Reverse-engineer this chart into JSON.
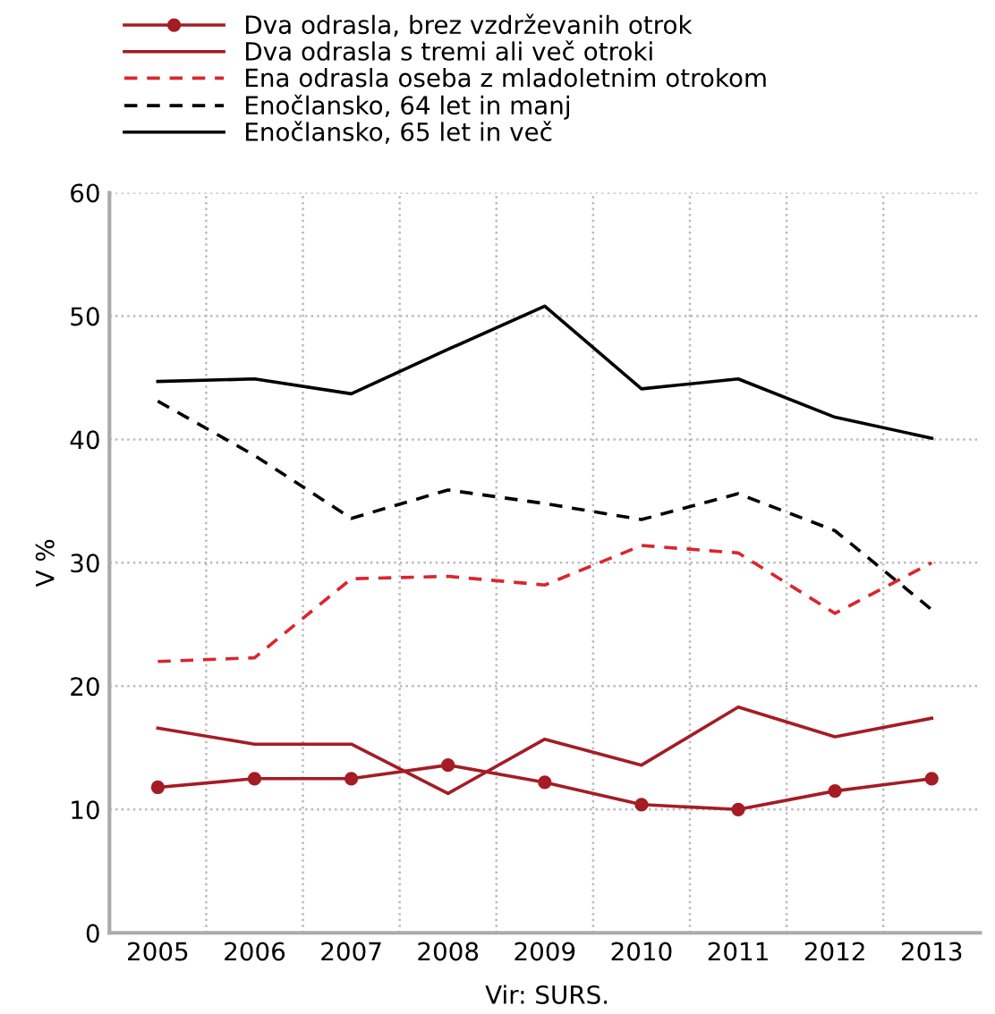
{
  "chart_data": {
    "type": "line",
    "ylabel": "V %",
    "annotations": [
      "Vir: SURS."
    ],
    "categories": [
      "2005",
      "2006",
      "2007",
      "2008",
      "2009",
      "2010",
      "2011",
      "2012",
      "2013"
    ],
    "series": [
      {
        "name": "Dva odrasla, brez vzdrževanih otrok",
        "color": "#a51c24",
        "marker": "circle",
        "line_style": "solid",
        "values": [
          11.8,
          12.5,
          12.5,
          13.6,
          12.2,
          10.4,
          10.0,
          11.5,
          12.5
        ]
      },
      {
        "name": "Dva odrasla s tremi ali več otroki",
        "color": "#a51c24",
        "marker": "none",
        "line_style": "solid",
        "values": [
          16.6,
          15.3,
          15.3,
          11.3,
          15.7,
          13.6,
          18.3,
          15.9,
          17.4
        ]
      },
      {
        "name": "Ena odrasla oseba z mladoletnim otrokom",
        "color": "#d9262e",
        "marker": "none",
        "line_style": "dashed",
        "values": [
          22.0,
          22.3,
          28.7,
          28.9,
          28.2,
          31.4,
          30.8,
          25.9,
          30.0
        ]
      },
      {
        "name": "Enočlansko, 64 let in manj",
        "color": "#000000",
        "marker": "none",
        "line_style": "dashed",
        "values": [
          43.1,
          38.7,
          33.6,
          35.9,
          34.8,
          33.5,
          35.6,
          32.6,
          26.2
        ]
      },
      {
        "name": "Enočlansko, 65 let in več",
        "color": "#000000",
        "marker": "none",
        "line_style": "solid",
        "values": [
          44.7,
          44.9,
          43.7,
          47.3,
          50.8,
          44.1,
          44.9,
          41.8,
          40.1
        ]
      }
    ],
    "ylim": [
      0,
      60
    ],
    "yticks": [
      0,
      10,
      20,
      30,
      40,
      50,
      60
    ],
    "grid": true,
    "legend": "top"
  }
}
